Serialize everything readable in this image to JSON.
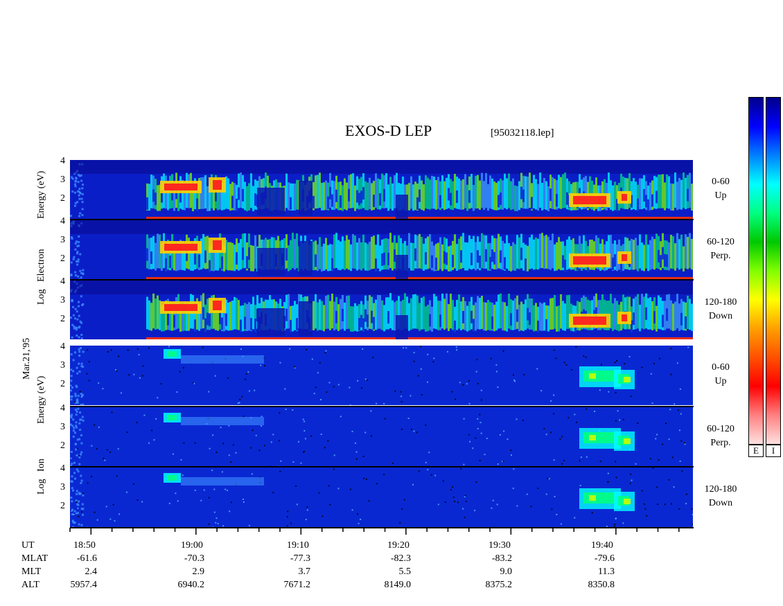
{
  "header": {
    "title": "EXOS-D LEP",
    "file": "[95032118.lep]"
  },
  "chart_data": {
    "type": "heatmap",
    "title": "EXOS-D LEP",
    "date_label": "Mar.21,'95",
    "y_ticks": [
      "4",
      "3",
      "2"
    ],
    "ylim": [
      1,
      4
    ],
    "panels": [
      {
        "species": "electron",
        "label_top": "0-60",
        "label_bottom": "Up"
      },
      {
        "species": "electron",
        "label_top": "60-120",
        "label_bottom": "Perp."
      },
      {
        "species": "electron",
        "label_top": "120-180",
        "label_bottom": "Down"
      },
      {
        "species": "ion",
        "label_top": "0-60",
        "label_bottom": "Up"
      },
      {
        "species": "ion",
        "label_top": "60-120",
        "label_bottom": "Perp."
      },
      {
        "species": "ion",
        "label_top": "120-180",
        "label_bottom": "Down"
      }
    ],
    "electron_ylabel": "Log Electron Energy (eV)",
    "electron_ylabel_parts": [
      "Log",
      "Electron",
      "Energy",
      "(eV)"
    ],
    "ion_ylabel": "Log Ion Energy (eV)",
    "ion_ylabel_parts": [
      "Log",
      "Ion",
      "Energy",
      "(eV)"
    ],
    "colorbar": {
      "colors": [
        "#00008b",
        "#0000ff",
        "#0080ff",
        "#00ffff",
        "#00ff80",
        "#00c800",
        "#80ff00",
        "#ffff00",
        "#ffa000",
        "#ff5000",
        "#ff0000",
        "#ff8080",
        "#ffe0e0"
      ],
      "labels": [
        "E",
        "I"
      ]
    },
    "x_time": [
      "18:50",
      "19:00",
      "19:10",
      "19:20",
      "19:30",
      "19:40"
    ],
    "rows": [
      {
        "name": "UT",
        "values": [
          "18:50",
          "19:00",
          "19:10",
          "19:20",
          "19:30",
          "19:40"
        ]
      },
      {
        "name": "MLAT",
        "values": [
          "-61.6",
          "-70.3",
          "-77.3",
          "-82.3",
          "-83.2",
          "-79.6"
        ]
      },
      {
        "name": "MLT",
        "values": [
          "2.4",
          "2.9",
          "3.7",
          "5.5",
          "9.0",
          "11.3"
        ]
      },
      {
        "name": "ALT",
        "values": [
          "5957.4",
          "6940.2",
          "7671.2",
          "8149.0",
          "8375.2",
          "8350.8"
        ]
      }
    ]
  }
}
